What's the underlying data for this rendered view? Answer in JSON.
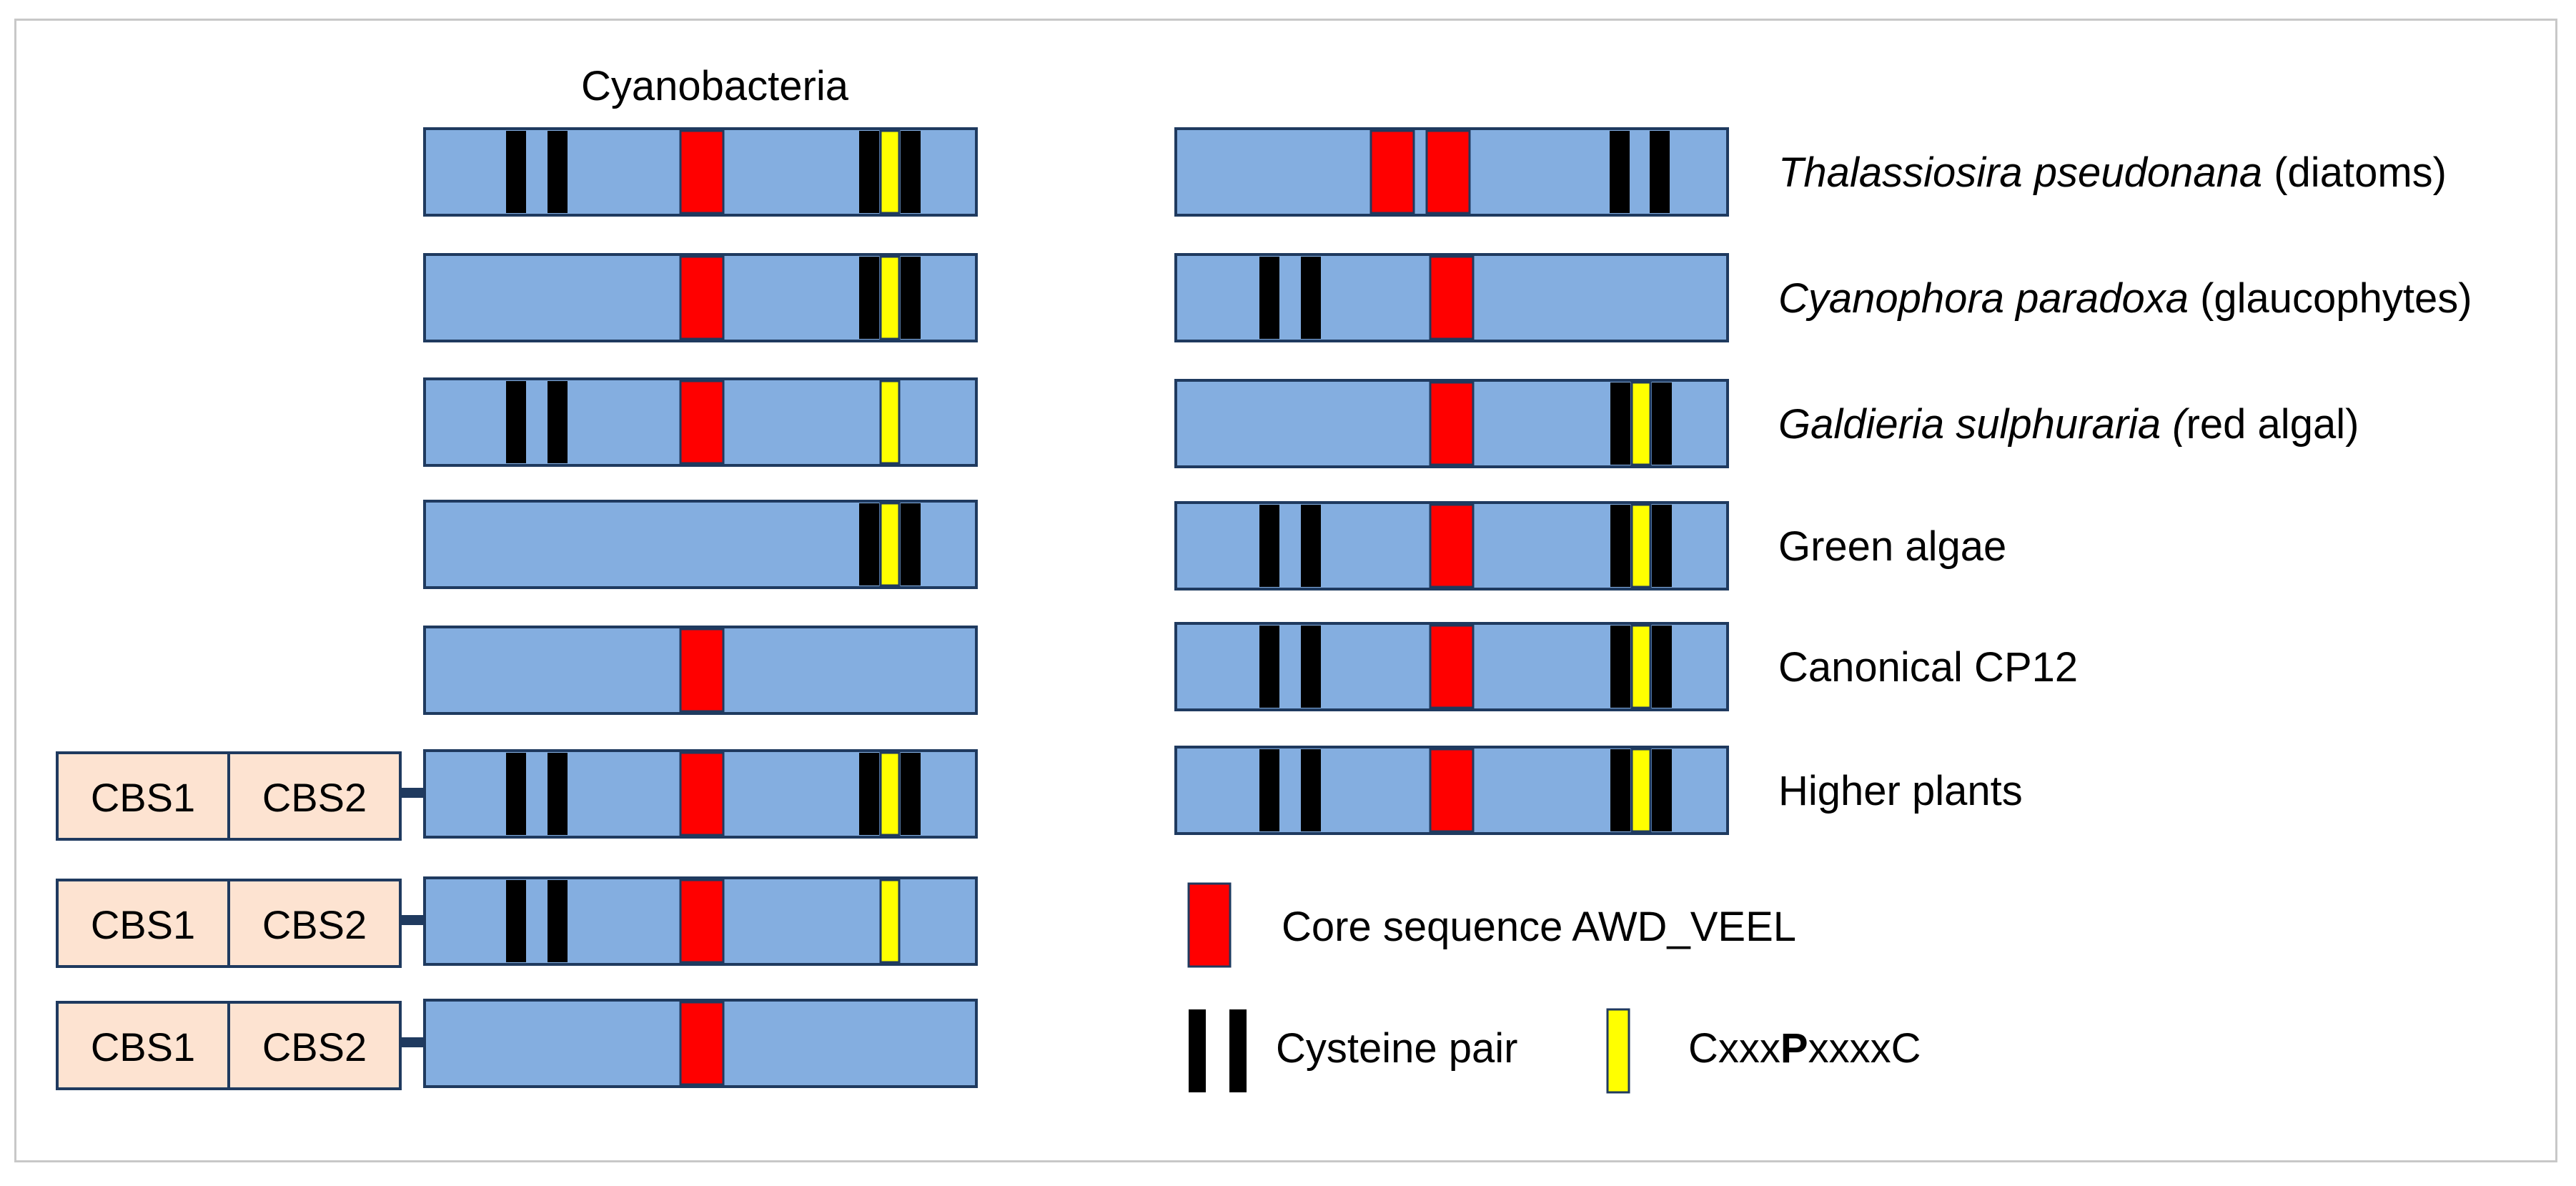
{
  "title": "Cyanobacteria",
  "colors": {
    "bar": "#84aee0",
    "bar_stroke": "#1f3a5f",
    "core": "#ff0000",
    "cys": "#000000",
    "motif": "#ffff00",
    "cbs": "#fde3d1",
    "linker": "#1f3a5f"
  },
  "cbs_labels": [
    "CBS1",
    "CBS2"
  ],
  "left_rows": [
    {
      "cbs": false,
      "cys_pair_1": true,
      "core": true,
      "motif": "flanked"
    },
    {
      "cbs": false,
      "cys_pair_1": false,
      "core": true,
      "motif": "flanked"
    },
    {
      "cbs": false,
      "cys_pair_1": true,
      "core": true,
      "motif": "alone"
    },
    {
      "cbs": false,
      "cys_pair_1": false,
      "core": false,
      "motif": "flanked"
    },
    {
      "cbs": false,
      "cys_pair_1": false,
      "core": true,
      "motif": "none"
    },
    {
      "cbs": true,
      "cys_pair_1": true,
      "core": true,
      "motif": "flanked"
    },
    {
      "cbs": true,
      "cys_pair_1": true,
      "core": true,
      "motif": "alone"
    },
    {
      "cbs": true,
      "cys_pair_1": false,
      "core": true,
      "motif": "none"
    }
  ],
  "right_rows": [
    {
      "label_italic": "Thalassiosira pseudonana",
      "label_plain": " (diatoms)",
      "cys_pair_1": false,
      "core": "double",
      "motif": "cys-only"
    },
    {
      "label_italic": "Cyanophora paradoxa",
      "label_plain": " (glaucophytes)",
      "cys_pair_1": true,
      "core": "single",
      "motif": "none"
    },
    {
      "label_italic": "Galdieria sulphuraria (",
      "label_plain": "red algal)",
      "cys_pair_1": false,
      "core": "single",
      "motif": "flanked"
    },
    {
      "label_italic": "",
      "label_plain": "Green algae",
      "cys_pair_1": true,
      "core": "single",
      "motif": "flanked"
    },
    {
      "label_italic": "",
      "label_plain": "Canonical CP12",
      "cys_pair_1": true,
      "core": "single",
      "motif": "flanked"
    },
    {
      "label_italic": "",
      "label_plain": "Higher plants",
      "cys_pair_1": true,
      "core": "single",
      "motif": "flanked"
    }
  ],
  "legend": {
    "core": "Core sequence AWD_VEEL",
    "cys": "Cysteine pair",
    "motif_prefix": "Cxxx",
    "motif_bold": "P",
    "motif_suffix": "xxxxC"
  }
}
